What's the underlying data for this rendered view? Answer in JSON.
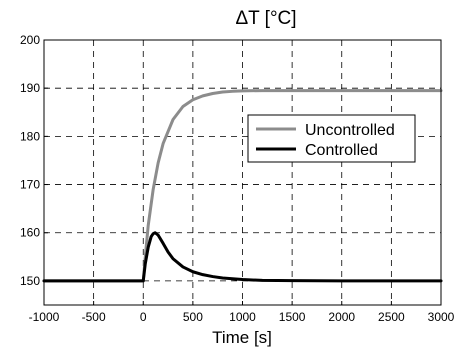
{
  "chart_data": {
    "type": "line",
    "title": "ΔT [°C]",
    "xlabel": "Time [s]",
    "ylabel": "",
    "xlim": [
      -1000,
      3000
    ],
    "ylim": [
      145,
      200
    ],
    "xticks": [
      -1000,
      -500,
      0,
      500,
      1000,
      1500,
      2000,
      2500,
      3000
    ],
    "yticks": [
      150,
      160,
      170,
      180,
      190,
      200
    ],
    "grid": "dashed",
    "legend_position": "right",
    "series": [
      {
        "name": "Uncontrolled",
        "color": "#8c8c8c",
        "x": [
          -1000,
          -500,
          0,
          25,
          50,
          100,
          150,
          200,
          300,
          400,
          500,
          600,
          700,
          800,
          900,
          1000,
          1200,
          1500,
          2000,
          2500,
          3000
        ],
        "y": [
          150,
          150,
          150,
          156.0,
          161.5,
          169.0,
          174.5,
          178.5,
          183.5,
          186.2,
          187.6,
          188.4,
          188.9,
          189.2,
          189.35,
          189.45,
          189.5,
          189.5,
          189.5,
          189.5,
          189.5
        ]
      },
      {
        "name": "Controlled",
        "color": "#000000",
        "x": [
          -1000,
          -500,
          0,
          20,
          50,
          80,
          100,
          120,
          150,
          200,
          250,
          300,
          400,
          500,
          600,
          700,
          800,
          1000,
          1200,
          1500,
          2000,
          2500,
          3000
        ],
        "y": [
          150,
          150,
          150,
          153.5,
          157.0,
          159.2,
          159.8,
          160.0,
          159.5,
          157.8,
          156.0,
          154.6,
          152.9,
          151.9,
          151.3,
          150.9,
          150.6,
          150.3,
          150.1,
          150.05,
          150,
          150,
          150
        ]
      }
    ]
  }
}
